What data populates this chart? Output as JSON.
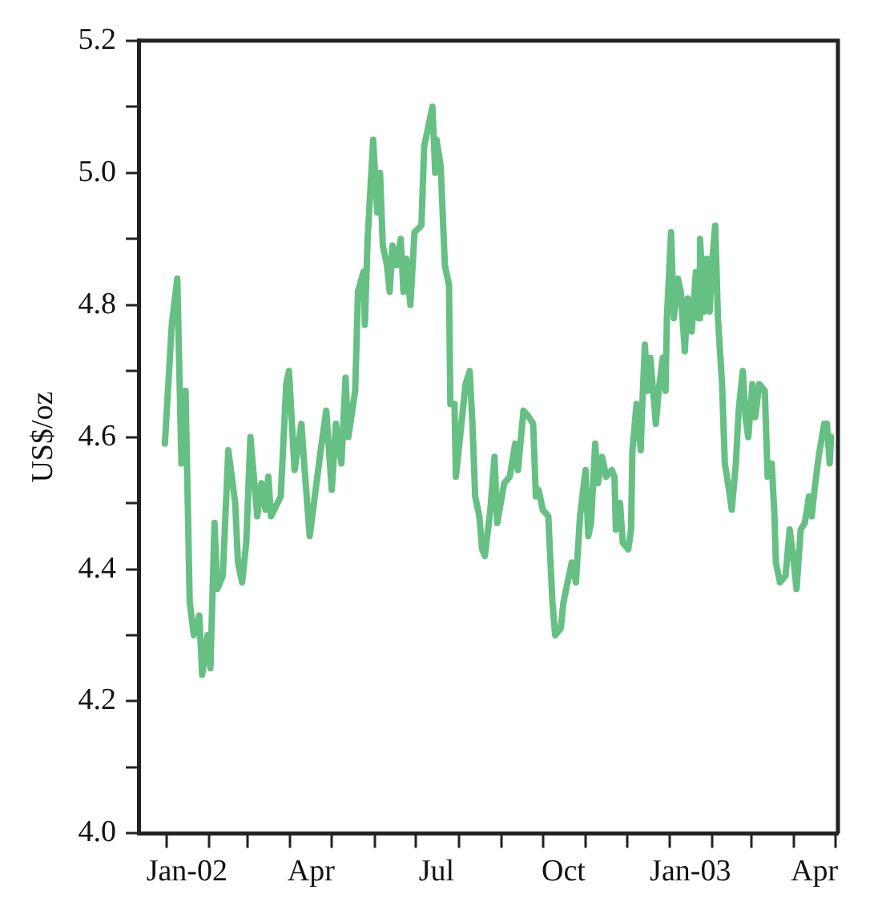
{
  "chart_data": {
    "type": "line",
    "ylabel": "US$/oz",
    "x": [
      "2001-12-31",
      "2002-01-05",
      "2002-01-09",
      "2002-01-12",
      "2002-01-15",
      "2002-01-18",
      "2002-01-21",
      "2002-01-25",
      "2002-01-27",
      "2002-01-31",
      "2002-02-02",
      "2002-02-05",
      "2002-02-07",
      "2002-02-11",
      "2002-02-15",
      "2002-02-20",
      "2002-02-22",
      "2002-02-25",
      "2002-02-28",
      "2002-03-03",
      "2002-03-08",
      "2002-03-11",
      "2002-03-14",
      "2002-03-16",
      "2002-03-18",
      "2002-03-25",
      "2002-03-29",
      "2002-03-31",
      "2002-04-04",
      "2002-04-09",
      "2002-04-11",
      "2002-04-15",
      "2002-04-23",
      "2002-04-27",
      "2002-05-01",
      "2002-05-04",
      "2002-05-08",
      "2002-05-11",
      "2002-05-13",
      "2002-05-18",
      "2002-05-20",
      "2002-05-24",
      "2002-05-25",
      "2002-05-27",
      "2002-05-31",
      "2002-06-03",
      "2002-06-05",
      "2002-06-07",
      "2002-06-10",
      "2002-06-12",
      "2002-06-14",
      "2002-06-17",
      "2002-06-20",
      "2002-06-22",
      "2002-06-24",
      "2002-06-27",
      "2002-06-30",
      "2002-07-05",
      "2002-07-07",
      "2002-07-09",
      "2002-07-13",
      "2002-07-15",
      "2002-07-16",
      "2002-07-19",
      "2002-07-22",
      "2002-07-25",
      "2002-07-26",
      "2002-07-29",
      "2002-07-30",
      "2002-08-02",
      "2002-08-06",
      "2002-08-09",
      "2002-08-11",
      "2002-08-13",
      "2002-08-16",
      "2002-08-18",
      "2002-08-20",
      "2002-08-24",
      "2002-08-27",
      "2002-08-29",
      "2002-09-03",
      "2002-09-07",
      "2002-09-11",
      "2002-09-13",
      "2002-09-17",
      "2002-09-21",
      "2002-09-24",
      "2002-09-26",
      "2002-09-28",
      "2002-10-01",
      "2002-10-05",
      "2002-10-08",
      "2002-10-10",
      "2002-10-14",
      "2002-10-16",
      "2002-10-19",
      "2002-10-22",
      "2002-10-25",
      "2002-10-28",
      "2002-11-01",
      "2002-11-03",
      "2002-11-05",
      "2002-11-08",
      "2002-11-10",
      "2002-11-13",
      "2002-11-16",
      "2002-11-20",
      "2002-11-22",
      "2002-11-23",
      "2002-11-26",
      "2002-11-28",
      "2002-12-02",
      "2002-12-04",
      "2002-12-05",
      "2002-12-08",
      "2002-12-11",
      "2002-12-12",
      "2002-12-14",
      "2002-12-16",
      "2002-12-18",
      "2002-12-22",
      "2002-12-24",
      "2002-12-27",
      "2002-12-29",
      "2002-12-30",
      "2003-01-02",
      "2003-01-04",
      "2003-01-07",
      "2003-01-09",
      "2003-01-12",
      "2003-01-14",
      "2003-01-17",
      "2003-01-20",
      "2003-01-22",
      "2003-01-23",
      "2003-01-26",
      "2003-01-28",
      "2003-01-30",
      "2003-02-01",
      "2003-02-03",
      "2003-02-05",
      "2003-02-08",
      "2003-02-10",
      "2003-02-13",
      "2003-02-15",
      "2003-02-18",
      "2003-02-20",
      "2003-02-23",
      "2003-02-25",
      "2003-02-27",
      "2003-03-02",
      "2003-03-04",
      "2003-03-07",
      "2003-03-11",
      "2003-03-13",
      "2003-03-16",
      "2003-03-18",
      "2003-03-19",
      "2003-03-22",
      "2003-03-26",
      "2003-03-29",
      "2003-04-01",
      "2003-04-03",
      "2003-04-06",
      "2003-04-09",
      "2003-04-12",
      "2003-04-14",
      "2003-04-16",
      "2003-04-19",
      "2003-04-23",
      "2003-04-25",
      "2003-04-27",
      "2003-04-28"
    ],
    "series": [
      {
        "color": "#66c083",
        "values": [
          4.59,
          4.77,
          4.84,
          4.56,
          4.67,
          4.35,
          4.3,
          4.33,
          4.24,
          4.3,
          4.25,
          4.47,
          4.37,
          4.39,
          4.58,
          4.5,
          4.41,
          4.38,
          4.44,
          4.6,
          4.48,
          4.53,
          4.49,
          4.54,
          4.48,
          4.51,
          4.68,
          4.7,
          4.55,
          4.62,
          4.56,
          4.45,
          4.58,
          4.64,
          4.52,
          4.62,
          4.56,
          4.69,
          4.6,
          4.67,
          4.82,
          4.85,
          4.77,
          4.9,
          5.05,
          4.94,
          5.0,
          4.89,
          4.86,
          4.82,
          4.89,
          4.86,
          4.9,
          4.82,
          4.87,
          4.8,
          4.91,
          4.92,
          5.04,
          5.06,
          5.1,
          5.0,
          5.05,
          5.01,
          4.86,
          4.83,
          4.65,
          4.65,
          4.54,
          4.6,
          4.68,
          4.7,
          4.62,
          4.51,
          4.48,
          4.43,
          4.42,
          4.49,
          4.57,
          4.47,
          4.53,
          4.54,
          4.59,
          4.55,
          4.64,
          4.63,
          4.62,
          4.51,
          4.52,
          4.49,
          4.48,
          4.35,
          4.3,
          4.31,
          4.35,
          4.38,
          4.41,
          4.38,
          4.48,
          4.55,
          4.45,
          4.47,
          4.59,
          4.53,
          4.57,
          4.54,
          4.55,
          4.54,
          4.46,
          4.5,
          4.44,
          4.43,
          4.46,
          4.58,
          4.65,
          4.58,
          4.64,
          4.74,
          4.67,
          4.72,
          4.62,
          4.67,
          4.72,
          4.67,
          4.78,
          4.91,
          4.78,
          4.84,
          4.82,
          4.73,
          4.81,
          4.76,
          4.85,
          4.78,
          4.9,
          4.79,
          4.87,
          4.79,
          4.87,
          4.92,
          4.78,
          4.68,
          4.56,
          4.52,
          4.49,
          4.56,
          4.64,
          4.7,
          4.63,
          4.6,
          4.68,
          4.63,
          4.68,
          4.67,
          4.54,
          4.56,
          4.48,
          4.41,
          4.38,
          4.39,
          4.46,
          4.41,
          4.37,
          4.46,
          4.47,
          4.51,
          4.48,
          4.52,
          4.57,
          4.62,
          4.62,
          4.56,
          4.6
        ]
      }
    ],
    "xlim": [
      "2001-12-12",
      "2003-05-03"
    ],
    "xticks": [
      {
        "value": "2002-01-01",
        "label": null
      },
      {
        "value": "2002-01-16",
        "label": "Jan-02"
      },
      {
        "value": "2002-02-01",
        "label": null
      },
      {
        "value": "2002-03-01",
        "label": null
      },
      {
        "value": "2002-04-01",
        "label": null
      },
      {
        "value": "2002-04-16",
        "label": "Apr"
      },
      {
        "value": "2002-05-01",
        "label": null
      },
      {
        "value": "2002-06-01",
        "label": null
      },
      {
        "value": "2002-07-01",
        "label": null
      },
      {
        "value": "2002-07-16",
        "label": "Jul"
      },
      {
        "value": "2002-08-01",
        "label": null
      },
      {
        "value": "2002-09-01",
        "label": null
      },
      {
        "value": "2002-10-01",
        "label": null
      },
      {
        "value": "2002-10-16",
        "label": "Oct"
      },
      {
        "value": "2002-11-01",
        "label": null
      },
      {
        "value": "2002-12-01",
        "label": null
      },
      {
        "value": "2003-01-01",
        "label": null
      },
      {
        "value": "2003-01-16",
        "label": "Jan-03"
      },
      {
        "value": "2003-02-01",
        "label": null
      },
      {
        "value": "2003-03-01",
        "label": null
      },
      {
        "value": "2003-04-01",
        "label": null
      },
      {
        "value": "2003-04-16",
        "label": "Apr"
      },
      {
        "value": "2003-05-01",
        "label": null
      }
    ],
    "ylim": [
      4.0,
      5.2
    ],
    "yticks": [
      {
        "value": 4.0,
        "label": "4.0"
      },
      {
        "value": 4.1,
        "label": null
      },
      {
        "value": 4.2,
        "label": "4.2"
      },
      {
        "value": 4.3,
        "label": null
      },
      {
        "value": 4.4,
        "label": "4.4"
      },
      {
        "value": 4.5,
        "label": null
      },
      {
        "value": 4.6,
        "label": "4.6"
      },
      {
        "value": 4.7,
        "label": null
      },
      {
        "value": 4.8,
        "label": "4.8"
      },
      {
        "value": 4.9,
        "label": null
      },
      {
        "value": 5.0,
        "label": "5.0"
      },
      {
        "value": 5.1,
        "label": null
      },
      {
        "value": 5.2,
        "label": "5.2"
      }
    ],
    "grid": false,
    "legend": false,
    "marker": "none",
    "line_style": "solid"
  }
}
